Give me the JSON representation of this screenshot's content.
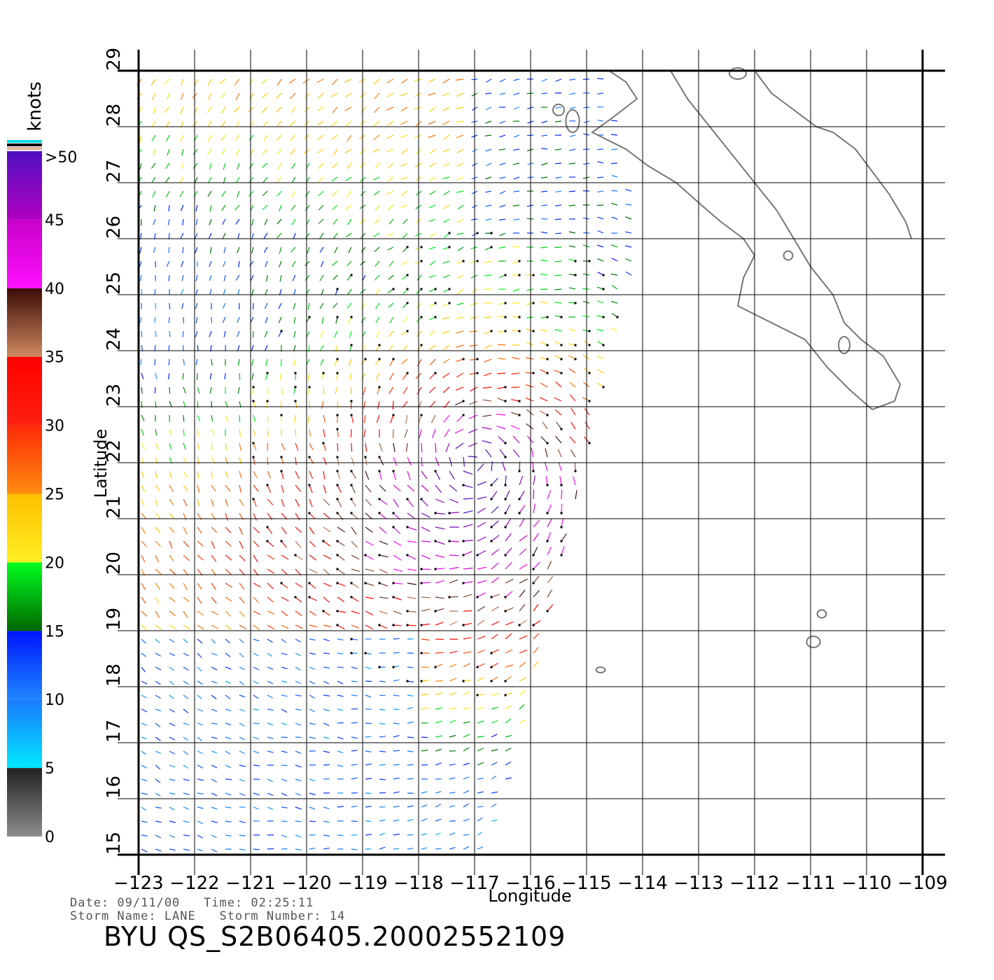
{
  "map": {
    "xlabel": "Longitude",
    "ylabel": "Latitude",
    "lon_ticks": [
      "-123",
      "-122",
      "-121",
      "-120",
      "-119",
      "-118",
      "-117",
      "-116",
      "-115",
      "-114",
      "-113",
      "-112",
      "-111",
      "-110",
      "-109"
    ],
    "lat_ticks": [
      "15",
      "16",
      "17",
      "18",
      "19",
      "20",
      "21",
      "22",
      "23",
      "24",
      "25",
      "26",
      "27",
      "28",
      "29"
    ],
    "lon_range": [
      -123,
      -109
    ],
    "lat_range": [
      15,
      29
    ],
    "grid": true,
    "coast_color": "#777777",
    "swath_right_edge": [
      [
        -116.8,
        15
      ],
      [
        -115.5,
        20
      ],
      [
        -114,
        26
      ],
      [
        -114.6,
        29
      ]
    ]
  },
  "colorbar": {
    "unit_label": "knots",
    "tick_labels": [
      ">50",
      "45",
      "40",
      "35",
      "30",
      "25",
      "20",
      "15",
      "10",
      "5",
      "0"
    ],
    "segments": [
      {
        "from": 0,
        "to": 5,
        "colors": [
          "#8c8c8c",
          "#222222"
        ]
      },
      {
        "from": 5,
        "to": 10,
        "colors": [
          "#00e8ff",
          "#1a7aff"
        ]
      },
      {
        "from": 10,
        "to": 15,
        "colors": [
          "#1e88ff",
          "#0014ff"
        ]
      },
      {
        "from": 15,
        "to": 20,
        "colors": [
          "#006600",
          "#00ff20"
        ]
      },
      {
        "from": 20,
        "to": 25,
        "colors": [
          "#ffef20",
          "#ffc000"
        ]
      },
      {
        "from": 25,
        "to": 30,
        "colors": [
          "#ff8c10",
          "#ff2a08"
        ]
      },
      {
        "from": 30,
        "to": 35,
        "colors": [
          "#ff2010",
          "#ff0000"
        ]
      },
      {
        "from": 35,
        "to": 40,
        "colors": [
          "#d08860",
          "#3a0c06"
        ]
      },
      {
        "from": 40,
        "to": 45,
        "colors": [
          "#ff10ff",
          "#c800c8"
        ]
      },
      {
        "from": 45,
        "to": 50,
        "colors": [
          "#b000c0",
          "#5010c0"
        ]
      }
    ]
  },
  "info": {
    "date_time": "Date: 09/11/00   Time: 02:25:11",
    "storm": "Storm Name: LANE   Storm Number: 14",
    "product_id": "BYU QS_S2B06405.20002552109"
  },
  "storm_center": {
    "lon": -117.0,
    "lat": 22.0
  }
}
